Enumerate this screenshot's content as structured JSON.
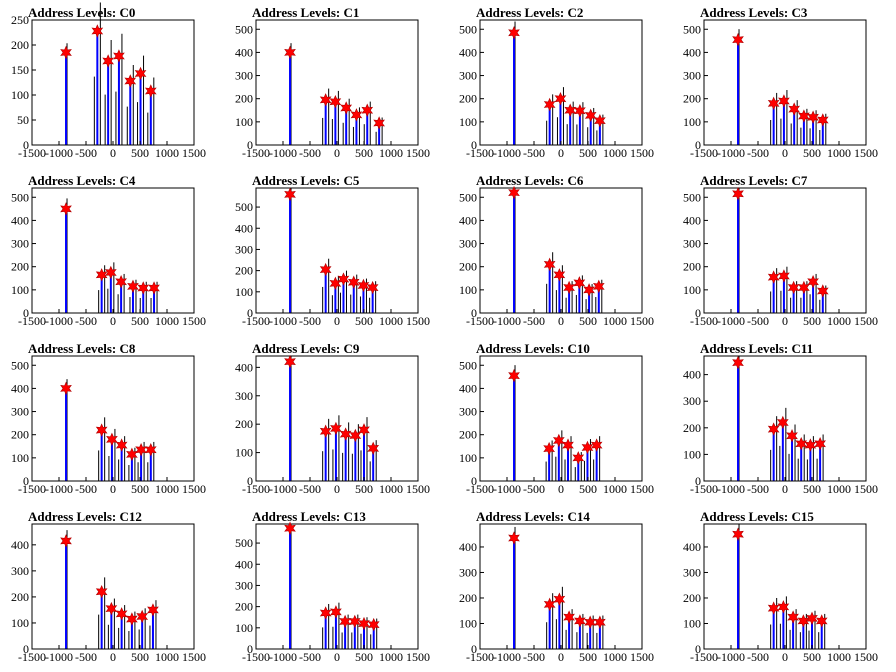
{
  "x_ticks": [
    -1500,
    -1000,
    -500,
    0,
    500,
    1000,
    1500
  ],
  "xlim": [
    -1500,
    1500
  ],
  "colors": {
    "frame": "#000000",
    "line_blue": "#0000ff",
    "line_black": "#000000",
    "marker": "#ff0000"
  },
  "chart_data": [
    {
      "type": "bar",
      "title": "Address Levels: C0",
      "ylim": [
        0,
        250
      ],
      "y_ticks": [
        0,
        50,
        100,
        150,
        200,
        250
      ],
      "peaks": [
        {
          "x": -870,
          "y": 185
        },
        {
          "x": -290,
          "y": 228
        },
        {
          "x": -90,
          "y": 168
        },
        {
          "x": 110,
          "y": 178
        },
        {
          "x": 320,
          "y": 128
        },
        {
          "x": 510,
          "y": 143
        },
        {
          "x": 700,
          "y": 108
        }
      ]
    },
    {
      "type": "bar",
      "title": "Address Levels: C1",
      "ylim": [
        0,
        540
      ],
      "y_ticks": [
        0,
        100,
        200,
        300,
        400,
        500
      ],
      "peaks": [
        {
          "x": -870,
          "y": 400
        },
        {
          "x": -210,
          "y": 195
        },
        {
          "x": -30,
          "y": 187
        },
        {
          "x": 170,
          "y": 160
        },
        {
          "x": 360,
          "y": 130
        },
        {
          "x": 560,
          "y": 150
        },
        {
          "x": 780,
          "y": 95
        }
      ]
    },
    {
      "type": "bar",
      "title": "Address Levels: C2",
      "ylim": [
        0,
        540
      ],
      "y_ticks": [
        0,
        100,
        200,
        300,
        400,
        500
      ],
      "peaks": [
        {
          "x": -870,
          "y": 485
        },
        {
          "x": -210,
          "y": 175
        },
        {
          "x": -10,
          "y": 200
        },
        {
          "x": 170,
          "y": 150
        },
        {
          "x": 350,
          "y": 148
        },
        {
          "x": 550,
          "y": 128
        },
        {
          "x": 720,
          "y": 105
        }
      ]
    },
    {
      "type": "bar",
      "title": "Address Levels: C3",
      "ylim": [
        0,
        540
      ],
      "y_ticks": [
        0,
        100,
        200,
        300,
        400,
        500
      ],
      "peaks": [
        {
          "x": -870,
          "y": 455
        },
        {
          "x": -210,
          "y": 180
        },
        {
          "x": -20,
          "y": 190
        },
        {
          "x": 170,
          "y": 155
        },
        {
          "x": 350,
          "y": 125
        },
        {
          "x": 520,
          "y": 120
        },
        {
          "x": 700,
          "y": 108
        }
      ]
    },
    {
      "type": "bar",
      "title": "Address Levels: C4",
      "ylim": [
        0,
        540
      ],
      "y_ticks": [
        0,
        100,
        200,
        300,
        400,
        500
      ],
      "peaks": [
        {
          "x": -870,
          "y": 450
        },
        {
          "x": -210,
          "y": 165
        },
        {
          "x": -40,
          "y": 175
        },
        {
          "x": 150,
          "y": 135
        },
        {
          "x": 370,
          "y": 115
        },
        {
          "x": 560,
          "y": 108
        },
        {
          "x": 760,
          "y": 108
        }
      ]
    },
    {
      "type": "bar",
      "title": "Address Levels: C5",
      "ylim": [
        0,
        590
      ],
      "y_ticks": [
        0,
        100,
        200,
        300,
        400,
        500
      ],
      "peaks": [
        {
          "x": -870,
          "y": 560
        },
        {
          "x": -210,
          "y": 205
        },
        {
          "x": -30,
          "y": 140
        },
        {
          "x": 120,
          "y": 160
        },
        {
          "x": 310,
          "y": 145
        },
        {
          "x": 490,
          "y": 130
        },
        {
          "x": 660,
          "y": 120
        }
      ]
    },
    {
      "type": "bar",
      "title": "Address Levels: C6",
      "ylim": [
        0,
        540
      ],
      "y_ticks": [
        0,
        100,
        200,
        300,
        400,
        500
      ],
      "peaks": [
        {
          "x": -870,
          "y": 520
        },
        {
          "x": -210,
          "y": 210
        },
        {
          "x": -30,
          "y": 165
        },
        {
          "x": 150,
          "y": 110
        },
        {
          "x": 340,
          "y": 130
        },
        {
          "x": 520,
          "y": 100
        },
        {
          "x": 700,
          "y": 115
        }
      ]
    },
    {
      "type": "bar",
      "title": "Address Levels: C7",
      "ylim": [
        0,
        540
      ],
      "y_ticks": [
        0,
        100,
        200,
        300,
        400,
        500
      ],
      "peaks": [
        {
          "x": -870,
          "y": 515
        },
        {
          "x": -210,
          "y": 155
        },
        {
          "x": -20,
          "y": 160
        },
        {
          "x": 160,
          "y": 110
        },
        {
          "x": 350,
          "y": 110
        },
        {
          "x": 520,
          "y": 135
        },
        {
          "x": 700,
          "y": 95
        }
      ]
    },
    {
      "type": "bar",
      "title": "Address Levels: C8",
      "ylim": [
        0,
        540
      ],
      "y_ticks": [
        0,
        100,
        200,
        300,
        400,
        500
      ],
      "peaks": [
        {
          "x": -870,
          "y": 400
        },
        {
          "x": -210,
          "y": 220
        },
        {
          "x": -20,
          "y": 180
        },
        {
          "x": 160,
          "y": 155
        },
        {
          "x": 350,
          "y": 115
        },
        {
          "x": 520,
          "y": 135
        },
        {
          "x": 700,
          "y": 135
        }
      ]
    },
    {
      "type": "bar",
      "title": "Address Levels: C9",
      "ylim": [
        0,
        440
      ],
      "y_ticks": [
        0,
        100,
        200,
        300,
        400
      ],
      "peaks": [
        {
          "x": -870,
          "y": 420
        },
        {
          "x": -210,
          "y": 175
        },
        {
          "x": -20,
          "y": 185
        },
        {
          "x": 160,
          "y": 165
        },
        {
          "x": 340,
          "y": 160
        },
        {
          "x": 500,
          "y": 180
        },
        {
          "x": 670,
          "y": 115
        }
      ]
    },
    {
      "type": "bar",
      "title": "Address Levels: C10",
      "ylim": [
        0,
        540
      ],
      "y_ticks": [
        0,
        100,
        200,
        300,
        400,
        500
      ],
      "peaks": [
        {
          "x": -870,
          "y": 455
        },
        {
          "x": -220,
          "y": 140
        },
        {
          "x": -40,
          "y": 175
        },
        {
          "x": 130,
          "y": 155
        },
        {
          "x": 320,
          "y": 100
        },
        {
          "x": 490,
          "y": 145
        },
        {
          "x": 660,
          "y": 155
        }
      ]
    },
    {
      "type": "bar",
      "title": "Address Levels: C11",
      "ylim": [
        0,
        470
      ],
      "y_ticks": [
        0,
        100,
        200,
        300,
        400
      ],
      "peaks": [
        {
          "x": -870,
          "y": 445
        },
        {
          "x": -210,
          "y": 195
        },
        {
          "x": -40,
          "y": 220
        },
        {
          "x": 130,
          "y": 170
        },
        {
          "x": 300,
          "y": 140
        },
        {
          "x": 470,
          "y": 135
        },
        {
          "x": 650,
          "y": 140
        }
      ]
    },
    {
      "type": "bar",
      "title": "Address Levels: C12",
      "ylim": [
        0,
        480
      ],
      "y_ticks": [
        0,
        100,
        200,
        300,
        400
      ],
      "peaks": [
        {
          "x": -870,
          "y": 415
        },
        {
          "x": -210,
          "y": 220
        },
        {
          "x": -30,
          "y": 155
        },
        {
          "x": 160,
          "y": 135
        },
        {
          "x": 350,
          "y": 115
        },
        {
          "x": 540,
          "y": 125
        },
        {
          "x": 740,
          "y": 150
        }
      ]
    },
    {
      "type": "bar",
      "title": "Address Levels: C13",
      "ylim": [
        0,
        590
      ],
      "y_ticks": [
        0,
        100,
        200,
        300,
        400,
        500
      ],
      "peaks": [
        {
          "x": -870,
          "y": 570
        },
        {
          "x": -210,
          "y": 170
        },
        {
          "x": -20,
          "y": 175
        },
        {
          "x": 150,
          "y": 130
        },
        {
          "x": 330,
          "y": 130
        },
        {
          "x": 500,
          "y": 120
        },
        {
          "x": 680,
          "y": 115
        }
      ]
    },
    {
      "type": "bar",
      "title": "Address Levels: C14",
      "ylim": [
        0,
        490
      ],
      "y_ticks": [
        0,
        100,
        200,
        300,
        400
      ],
      "peaks": [
        {
          "x": -870,
          "y": 435
        },
        {
          "x": -210,
          "y": 175
        },
        {
          "x": -30,
          "y": 195
        },
        {
          "x": 150,
          "y": 125
        },
        {
          "x": 350,
          "y": 110
        },
        {
          "x": 540,
          "y": 105
        },
        {
          "x": 720,
          "y": 105
        }
      ]
    },
    {
      "type": "bar",
      "title": "Address Levels: C15",
      "ylim": [
        0,
        490
      ],
      "y_ticks": [
        0,
        100,
        200,
        300,
        400
      ],
      "peaks": [
        {
          "x": -870,
          "y": 450
        },
        {
          "x": -210,
          "y": 160
        },
        {
          "x": -30,
          "y": 165
        },
        {
          "x": 150,
          "y": 125
        },
        {
          "x": 340,
          "y": 110
        },
        {
          "x": 500,
          "y": 120
        },
        {
          "x": 680,
          "y": 110
        }
      ]
    }
  ]
}
